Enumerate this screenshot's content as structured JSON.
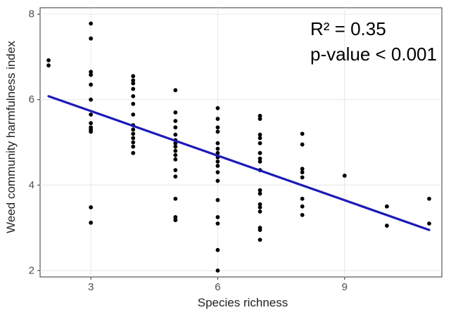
{
  "chart_data": {
    "type": "scatter",
    "title": "",
    "xlabel": "Species richness",
    "ylabel": "Weed community harmfulness index",
    "xlim": [
      1.8,
      11.3
    ],
    "ylim": [
      1.85,
      8.15
    ],
    "xticks": [
      3,
      6,
      9
    ],
    "xtick_labels": [
      "3",
      "6",
      "9"
    ],
    "yticks": [
      2,
      4,
      6,
      8
    ],
    "ytick_labels": [
      "2",
      "4",
      "6",
      "8"
    ],
    "grid": true,
    "legend": "none",
    "annotations": [
      "R² = 0.35",
      "p-value < 0.001"
    ],
    "fit_line": {
      "x": [
        2,
        11
      ],
      "y": [
        6.08,
        2.95
      ],
      "color": "#1a1ab8"
    },
    "point_color": "#000000",
    "points": [
      [
        2,
        6.92
      ],
      [
        2,
        6.8
      ],
      [
        3,
        7.78
      ],
      [
        3,
        7.43
      ],
      [
        3,
        6.65
      ],
      [
        3,
        6.58
      ],
      [
        3,
        6.35
      ],
      [
        3,
        6.0
      ],
      [
        3,
        5.65
      ],
      [
        3,
        5.45
      ],
      [
        3,
        5.35
      ],
      [
        3,
        5.3
      ],
      [
        3,
        5.25
      ],
      [
        3,
        3.48
      ],
      [
        3,
        3.12
      ],
      [
        4,
        6.55
      ],
      [
        4,
        6.45
      ],
      [
        4,
        6.38
      ],
      [
        4,
        6.25
      ],
      [
        4,
        6.08
      ],
      [
        4,
        5.9
      ],
      [
        4,
        5.65
      ],
      [
        4,
        5.4
      ],
      [
        4,
        5.3
      ],
      [
        4,
        5.2
      ],
      [
        4,
        5.1
      ],
      [
        4,
        5.0
      ],
      [
        4,
        4.9
      ],
      [
        4,
        4.75
      ],
      [
        5,
        6.22
      ],
      [
        5,
        5.7
      ],
      [
        5,
        5.5
      ],
      [
        5,
        5.35
      ],
      [
        5,
        5.18
      ],
      [
        5,
        5.05
      ],
      [
        5,
        4.98
      ],
      [
        5,
        4.9
      ],
      [
        5,
        4.8
      ],
      [
        5,
        4.7
      ],
      [
        5,
        4.6
      ],
      [
        5,
        4.35
      ],
      [
        5,
        4.2
      ],
      [
        5,
        3.68
      ],
      [
        5,
        3.25
      ],
      [
        5,
        3.18
      ],
      [
        6,
        5.8
      ],
      [
        6,
        5.55
      ],
      [
        6,
        5.35
      ],
      [
        6,
        5.25
      ],
      [
        6,
        4.98
      ],
      [
        6,
        4.85
      ],
      [
        6,
        4.75
      ],
      [
        6,
        4.65
      ],
      [
        6,
        4.55
      ],
      [
        6,
        4.45
      ],
      [
        6,
        4.3
      ],
      [
        6,
        4.1
      ],
      [
        6,
        3.65
      ],
      [
        6,
        3.25
      ],
      [
        6,
        3.1
      ],
      [
        6,
        2.48
      ],
      [
        6,
        2.0
      ],
      [
        7,
        5.62
      ],
      [
        7,
        5.55
      ],
      [
        7,
        5.18
      ],
      [
        7,
        5.1
      ],
      [
        7,
        4.98
      ],
      [
        7,
        4.75
      ],
      [
        7,
        4.62
      ],
      [
        7,
        4.55
      ],
      [
        7,
        4.35
      ],
      [
        7,
        3.88
      ],
      [
        7,
        3.8
      ],
      [
        7,
        3.55
      ],
      [
        7,
        3.48
      ],
      [
        7,
        3.38
      ],
      [
        7,
        3.0
      ],
      [
        7,
        2.95
      ],
      [
        7,
        2.72
      ],
      [
        8,
        5.2
      ],
      [
        8,
        4.95
      ],
      [
        8,
        4.38
      ],
      [
        8,
        4.3
      ],
      [
        8,
        4.18
      ],
      [
        8,
        3.68
      ],
      [
        8,
        3.5
      ],
      [
        8,
        3.3
      ],
      [
        9,
        4.22
      ],
      [
        10,
        3.5
      ],
      [
        10,
        3.05
      ],
      [
        11,
        3.68
      ],
      [
        11,
        3.1
      ]
    ]
  }
}
